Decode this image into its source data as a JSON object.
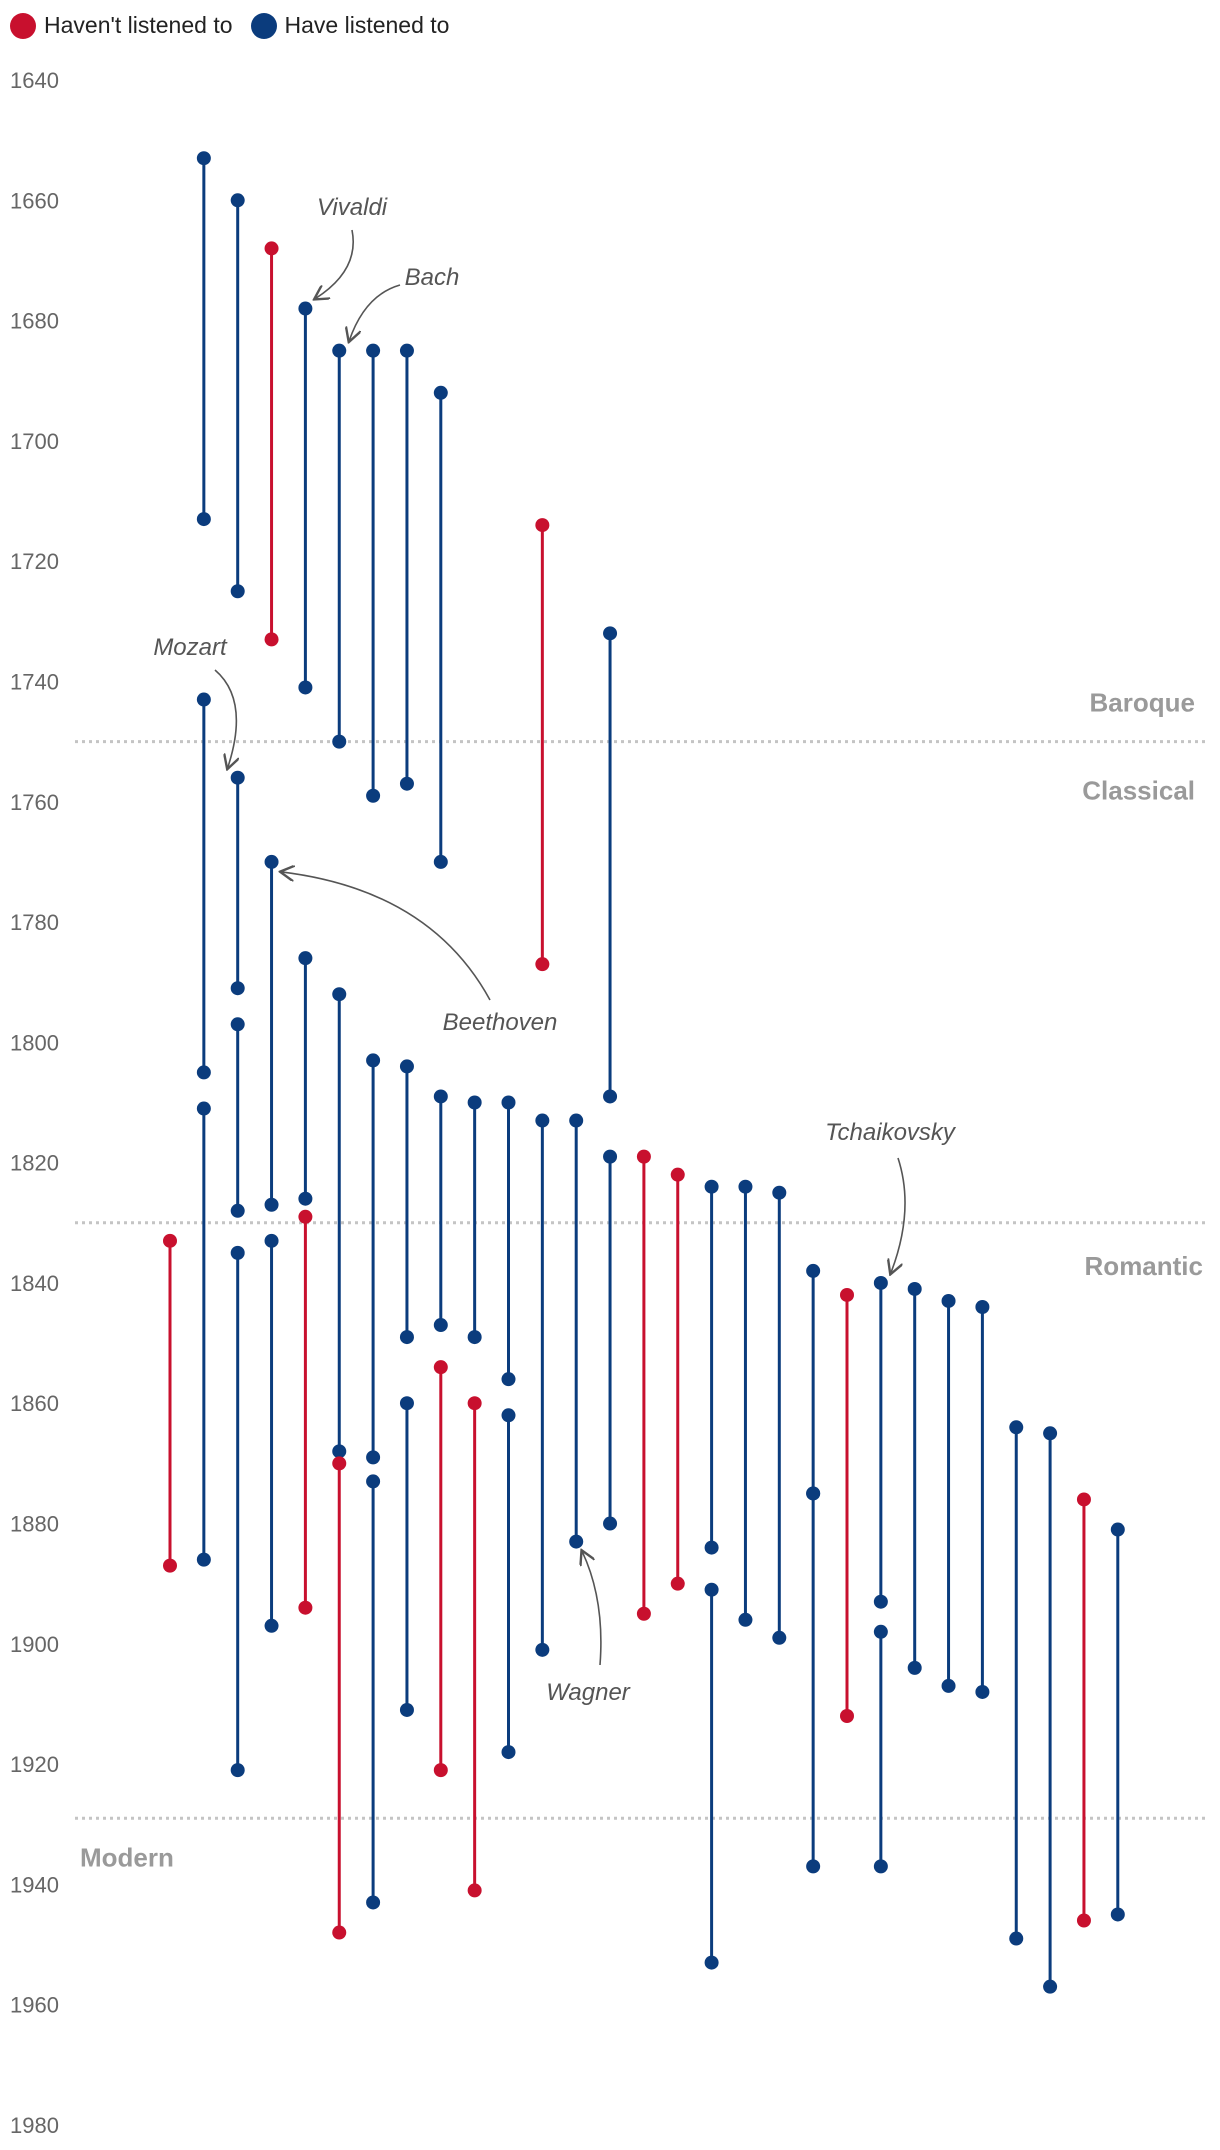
{
  "legend": {
    "items": [
      {
        "label": "Haven't listened to",
        "color": "#c8102e"
      },
      {
        "label": "Have listened to",
        "color": "#0b3c7d"
      }
    ]
  },
  "chart_data": {
    "type": "range-dot",
    "y_axis": {
      "ticks": [
        1640,
        1660,
        1680,
        1700,
        1720,
        1740,
        1760,
        1780,
        1800,
        1820,
        1840,
        1860,
        1880,
        1900,
        1920,
        1940,
        1960,
        1980
      ],
      "ylim": [
        1640,
        1980
      ],
      "reversed": true
    },
    "eras": [
      {
        "name": "Baroque",
        "boundary": 1750
      },
      {
        "name": "Classical",
        "boundary": 1750
      },
      {
        "name": "Romantic",
        "boundary": 1830
      },
      {
        "name": "Modern",
        "boundary": 1929
      }
    ],
    "era_boundaries": [
      1750,
      1830,
      1929
    ],
    "colors": {
      "not_listened": "#c8102e",
      "listened": "#0b3c7d"
    },
    "composers": [
      {
        "col": 6,
        "birth": 1653,
        "death": 1713,
        "listened": true
      },
      {
        "col": 7,
        "birth": 1660,
        "death": 1725,
        "listened": true
      },
      {
        "col": 8,
        "birth": 1668,
        "death": 1733,
        "listened": false
      },
      {
        "col": 9,
        "birth": 1678,
        "death": 1741,
        "listened": true,
        "name": "Vivaldi"
      },
      {
        "col": 10,
        "birth": 1685,
        "death": 1750,
        "listened": true,
        "name": "Bach"
      },
      {
        "col": 11,
        "birth": 1685,
        "death": 1759,
        "listened": true
      },
      {
        "col": 12,
        "birth": 1685,
        "death": 1757,
        "listened": true
      },
      {
        "col": 13,
        "birth": 1692,
        "death": 1770,
        "listened": true
      },
      {
        "col": 16,
        "birth": 1714,
        "death": 1787,
        "listened": false
      },
      {
        "col": 18,
        "birth": 1732,
        "death": 1809,
        "listened": true
      },
      {
        "col": 6,
        "birth": 1743,
        "death": 1805,
        "listened": true
      },
      {
        "col": 7,
        "birth": 1756,
        "death": 1791,
        "listened": true,
        "name": "Mozart"
      },
      {
        "col": 8,
        "birth": 1770,
        "death": 1827,
        "listened": true,
        "name": "Beethoven"
      },
      {
        "col": 9,
        "birth": 1786,
        "death": 1826,
        "listened": true
      },
      {
        "col": 10,
        "birth": 1792,
        "death": 1868,
        "listened": true
      },
      {
        "col": 7,
        "birth": 1797,
        "death": 1828,
        "listened": true
      },
      {
        "col": 11,
        "birth": 1803,
        "death": 1869,
        "listened": true
      },
      {
        "col": 12,
        "birth": 1804,
        "death": 1849,
        "listened": true
      },
      {
        "col": 13,
        "birth": 1809,
        "death": 1847,
        "listened": true
      },
      {
        "col": 14,
        "birth": 1810,
        "death": 1849,
        "listened": true
      },
      {
        "col": 15,
        "birth": 1810,
        "death": 1856,
        "listened": true
      },
      {
        "col": 6,
        "birth": 1811,
        "death": 1886,
        "listened": true
      },
      {
        "col": 16,
        "birth": 1813,
        "death": 1901,
        "listened": true
      },
      {
        "col": 17,
        "birth": 1813,
        "death": 1883,
        "listened": true,
        "name": "Wagner"
      },
      {
        "col": 18,
        "birth": 1819,
        "death": 1880,
        "listened": true
      },
      {
        "col": 19,
        "birth": 1819,
        "death": 1895,
        "listened": false
      },
      {
        "col": 20,
        "birth": 1822,
        "death": 1890,
        "listened": false
      },
      {
        "col": 21,
        "birth": 1824,
        "death": 1884,
        "listened": true
      },
      {
        "col": 22,
        "birth": 1824,
        "death": 1896,
        "listened": true
      },
      {
        "col": 23,
        "birth": 1825,
        "death": 1899,
        "listened": true
      },
      {
        "col": 9,
        "birth": 1829,
        "death": 1894,
        "listened": false
      },
      {
        "col": 5,
        "birth": 1833,
        "death": 1887,
        "listened": false
      },
      {
        "col": 8,
        "birth": 1833,
        "death": 1897,
        "listened": true
      },
      {
        "col": 7,
        "birth": 1835,
        "death": 1921,
        "listened": true
      },
      {
        "col": 24,
        "birth": 1838,
        "death": 1875,
        "listened": true
      },
      {
        "col": 26,
        "birth": 1840,
        "death": 1893,
        "listened": true,
        "name": "Tchaikovsky"
      },
      {
        "col": 27,
        "birth": 1841,
        "death": 1904,
        "listened": true
      },
      {
        "col": 25,
        "birth": 1842,
        "death": 1912,
        "listened": false
      },
      {
        "col": 28,
        "birth": 1843,
        "death": 1907,
        "listened": true
      },
      {
        "col": 29,
        "birth": 1844,
        "death": 1908,
        "listened": true
      },
      {
        "col": 13,
        "birth": 1854,
        "death": 1921,
        "listened": false
      },
      {
        "col": 12,
        "birth": 1860,
        "death": 1911,
        "listened": true
      },
      {
        "col": 14,
        "birth": 1860,
        "death": 1941,
        "listened": false
      },
      {
        "col": 15,
        "birth": 1862,
        "death": 1918,
        "listened": true
      },
      {
        "col": 30,
        "birth": 1864,
        "death": 1949,
        "listened": true
      },
      {
        "col": 31,
        "birth": 1865,
        "death": 1957,
        "listened": true
      },
      {
        "col": 10,
        "birth": 1870,
        "death": 1948,
        "listened": false
      },
      {
        "col": 11,
        "birth": 1873,
        "death": 1943,
        "listened": true
      },
      {
        "col": 24,
        "birth": 1875,
        "death": 1937,
        "listened": true
      },
      {
        "col": 32,
        "birth": 1876,
        "death": 1946,
        "listened": false
      },
      {
        "col": 33,
        "birth": 1881,
        "death": 1945,
        "listened": true
      },
      {
        "col": 21,
        "birth": 1891,
        "death": 1953,
        "listened": true
      },
      {
        "col": 26,
        "birth": 1898,
        "death": 1937,
        "listened": true
      }
    ],
    "annotations": [
      "Vivaldi",
      "Bach",
      "Mozart",
      "Beethoven",
      "Tchaikovsky",
      "Wagner"
    ]
  }
}
